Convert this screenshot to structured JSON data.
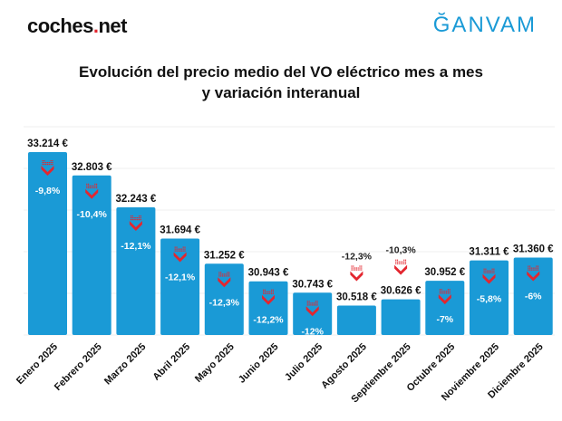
{
  "logos": {
    "left_pre": "coches",
    "left_dot": ".",
    "left_post": "net",
    "right": "ĞANVAM"
  },
  "chart_data": {
    "type": "bar",
    "title": [
      "Evolución del precio medio del VO eléctrico mes a mes",
      "y variación interanual"
    ],
    "categories": [
      "Enero 2025",
      "Febrero 2025",
      "Marzo 2025",
      "Abril 2025",
      "Mayo 2025",
      "Junio 2025",
      "Julio 2025",
      "Agosto 2025",
      "Septiembre 2025",
      "Octubre 2025",
      "Noviembre 2025",
      "Diciembre 2025"
    ],
    "values": [
      33214,
      32803,
      32243,
      31694,
      31252,
      30943,
      30743,
      30518,
      30626,
      30952,
      31311,
      31360
    ],
    "value_labels": [
      "33.214 €",
      "32.803 €",
      "32.243 €",
      "31.694 €",
      "31.252 €",
      "30.943 €",
      "30.743 €",
      "30.518 €",
      "30.626 €",
      "30.952 €",
      "31.311 €",
      "31.360 €"
    ],
    "yoy_change_labels": [
      "-9,8%",
      "-10,4%",
      "-12,1%",
      "-12,1%",
      "-12,3%",
      "-12,2%",
      "-12%",
      "-12,3%",
      "-10,3%",
      "-7%",
      "-5,8%",
      "-6%"
    ],
    "yoy_change_values": [
      -9.8,
      -10.4,
      -12.1,
      -12.1,
      -12.3,
      -12.2,
      -12,
      -12.3,
      -10.3,
      -7,
      -5.8,
      -6
    ],
    "ylim": [
      30000,
      33500
    ],
    "grid": true,
    "bar_color": "#1a9ad6",
    "arrow_color": "#e3262f",
    "xlabel": "",
    "ylabel": ""
  }
}
